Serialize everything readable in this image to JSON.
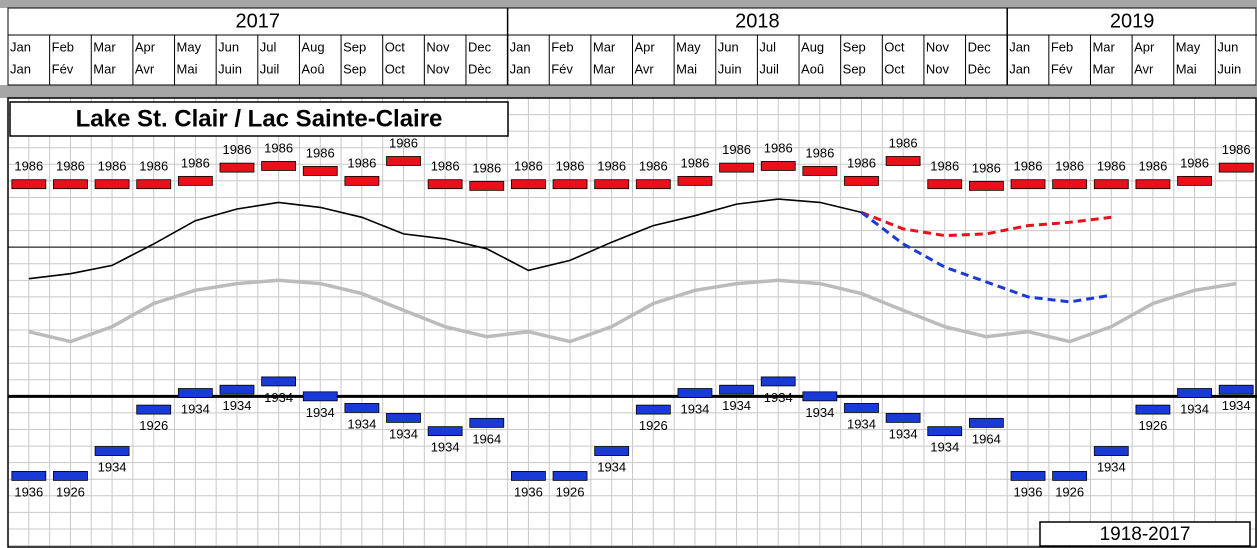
{
  "chart_data": {
    "type": "line",
    "title": "Lake St. Clair / Lac Sainte-Claire",
    "period_label": "1918-2017",
    "years": [
      "2017",
      "2018",
      "2019"
    ],
    "categories": [
      "Jan",
      "Feb",
      "Mar",
      "Apr",
      "May",
      "Jun",
      "Jul",
      "Aug",
      "Sep",
      "Oct",
      "Nov",
      "Dec",
      "Jan",
      "Feb",
      "Mar",
      "Apr",
      "May",
      "Jun",
      "Jul",
      "Aug",
      "Sep",
      "Oct",
      "Nov",
      "Dec",
      "Jan",
      "Feb",
      "Mar",
      "Apr",
      "May",
      "Jun"
    ],
    "categories_fr": [
      "Jan",
      "Fév",
      "Mar",
      "Avr",
      "Mai",
      "Juin",
      "Juil",
      "Aoû",
      "Sep",
      "Oct",
      "Nov",
      "Dèc",
      "Jan",
      "Fév",
      "Mar",
      "Avr",
      "Mai",
      "Juin",
      "Juil",
      "Aoû",
      "Sep",
      "Oct",
      "Nov",
      "Dèc",
      "Jan",
      "Fév",
      "Mar",
      "Avr",
      "Mai",
      "Juin"
    ],
    "ylim": [
      173.485,
      176.2
    ],
    "yticks": [
      173.5,
      173.6,
      173.7,
      173.8,
      173.9,
      174.0,
      174.1,
      174.2,
      174.3,
      174.4,
      174.5,
      174.6,
      174.7,
      174.8,
      174.9,
      175.0,
      175.1,
      175.2,
      175.3,
      175.4,
      175.5,
      175.6,
      175.7,
      175.8,
      175.9,
      176.0,
      176.1,
      176.2
    ],
    "reference_lines": [
      174.4,
      175.3
    ],
    "grid": true,
    "series": [
      {
        "color": "#000000",
        "dashed": false,
        "values": [
          175.11,
          175.14,
          175.19,
          175.32,
          175.46,
          175.53,
          175.57,
          175.54,
          175.48,
          175.38,
          175.35,
          175.29,
          175.16,
          175.22,
          175.33,
          175.43,
          175.49,
          175.56,
          175.59,
          175.57,
          175.51,
          null,
          null,
          null,
          null,
          null,
          null,
          null,
          null,
          null
        ]
      },
      {
        "color": "#bbbbbb",
        "dashed": false,
        "values": [
          174.79,
          174.73,
          174.82,
          174.96,
          175.04,
          175.08,
          175.1,
          175.08,
          175.02,
          174.92,
          174.82,
          174.76,
          174.79,
          174.73,
          174.82,
          174.96,
          175.04,
          175.08,
          175.1,
          175.08,
          175.02,
          174.92,
          174.82,
          174.76,
          174.79,
          174.73,
          174.82,
          174.96,
          175.04,
          175.08
        ]
      },
      {
        "color": "#e8101a",
        "dashed": true,
        "values": [
          null,
          null,
          null,
          null,
          null,
          null,
          null,
          null,
          null,
          null,
          null,
          null,
          null,
          null,
          null,
          null,
          null,
          null,
          null,
          null,
          175.51,
          175.41,
          175.37,
          175.38,
          175.43,
          175.45,
          175.48,
          null,
          null,
          null
        ]
      },
      {
        "color": "#1a3ad8",
        "dashed": true,
        "values": [
          null,
          null,
          null,
          null,
          null,
          null,
          null,
          null,
          null,
          null,
          null,
          null,
          null,
          null,
          null,
          null,
          null,
          null,
          null,
          null,
          175.51,
          175.32,
          175.18,
          175.09,
          175.0,
          174.97,
          175.01,
          null,
          null,
          null
        ]
      }
    ],
    "record_high": {
      "color": "#e8101a",
      "values": [
        175.68,
        175.68,
        175.68,
        175.68,
        175.7,
        175.78,
        175.79,
        175.76,
        175.7,
        175.82,
        175.68,
        175.67,
        175.68,
        175.68,
        175.68,
        175.68,
        175.7,
        175.78,
        175.79,
        175.76,
        175.7,
        175.82,
        175.68,
        175.67,
        175.68,
        175.68,
        175.68,
        175.68,
        175.7,
        175.78
      ],
      "labels": [
        "1986",
        "1986",
        "1986",
        "1986",
        "1986",
        "1986",
        "1986",
        "1986",
        "1986",
        "1986",
        "1986",
        "1986",
        "1986",
        "1986",
        "1986",
        "1986",
        "1986",
        "1986",
        "1986",
        "1986",
        "1986",
        "1986",
        "1986",
        "1986",
        "1986",
        "1986",
        "1986",
        "1986",
        "1986",
        "1986"
      ]
    },
    "record_low": {
      "color": "#1a3ad8",
      "values": [
        173.92,
        173.92,
        174.07,
        174.32,
        174.42,
        174.44,
        174.49,
        174.4,
        174.33,
        174.27,
        174.19,
        174.24,
        173.92,
        173.92,
        174.07,
        174.32,
        174.42,
        174.44,
        174.49,
        174.4,
        174.33,
        174.27,
        174.19,
        174.24,
        173.92,
        173.92,
        174.07,
        174.32,
        174.42,
        174.44
      ],
      "labels": [
        "1936",
        "1926",
        "1934",
        "1926",
        "1934",
        "1934",
        "1934",
        "1934",
        "1934",
        "1934",
        "1934",
        "1964",
        "1936",
        "1926",
        "1934",
        "1926",
        "1934",
        "1934",
        "1934",
        "1934",
        "1934",
        "1934",
        "1934",
        "1964",
        "1936",
        "1926",
        "1934",
        "1926",
        "1934",
        "1934"
      ]
    }
  }
}
